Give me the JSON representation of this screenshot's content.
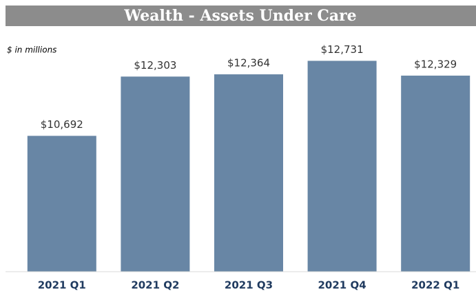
{
  "chart_data": {
    "type": "bar",
    "title": "Wealth - Assets Under Care",
    "subtitle": "$ in millions",
    "categories": [
      "2021 Q1",
      "2021 Q2",
      "2021 Q3",
      "2021 Q4",
      "2022 Q1"
    ],
    "values": [
      10692,
      12303,
      12364,
      12731,
      12329
    ],
    "value_labels": [
      "$10,692",
      "$12,303",
      "$12,364",
      "$12,731",
      "$12,329"
    ],
    "color": "#6886a5",
    "ylim": [
      7000,
      13300
    ]
  }
}
